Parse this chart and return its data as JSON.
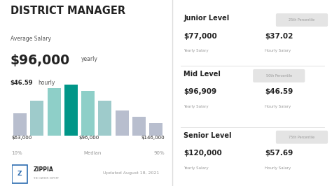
{
  "title": "DISTRICT MANAGER",
  "avg_salary_label": "Average Salary",
  "avg_yearly": "$96,000",
  "avg_yearly_unit": "yearly",
  "avg_hourly": "$46.59",
  "avg_hourly_unit": "hourly",
  "bar_heights": [
    3.5,
    5.5,
    7.5,
    8.0,
    7.0,
    5.5,
    4.0,
    3.0,
    2.0
  ],
  "bar_colors": [
    "#b8bece",
    "#9ecbcb",
    "#8ecfc8",
    "#009688",
    "#8ecfc8",
    "#9ecbcb",
    "#b8bece",
    "#b8bece",
    "#b8bece"
  ],
  "left_x_label": "$63,000",
  "left_pct": "10%",
  "mid_x_label": "$96,000",
  "mid_label": "Median",
  "right_x_label": "$146,000",
  "right_pct": "90%",
  "junior_level": "Junior Level",
  "junior_percentile": "25th Percentile",
  "junior_yearly": "$77,000",
  "junior_hourly": "$37.02",
  "mid_level": "Mid Level",
  "mid_percentile": "50th Percentile",
  "mid_yearly": "$96,909",
  "mid_hourly": "$46.59",
  "senior_level": "Senior Level",
  "senior_percentile": "75th Percentile",
  "senior_yearly": "$120,000",
  "senior_hourly": "$57.69",
  "yearly_label": "Yearly Salary",
  "hourly_label": "Hourly Salary",
  "update_text": "Updated August 18, 2021",
  "bg_color": "#ffffff",
  "right_panel_bg": "#f7f7f7",
  "text_dark": "#222222",
  "text_mid": "#555555",
  "text_light": "#999999",
  "badge_bg": "#e4e4e4",
  "teal_color": "#009688",
  "zippia_blue": "#2b6cb0",
  "divider_color": "#dddddd"
}
